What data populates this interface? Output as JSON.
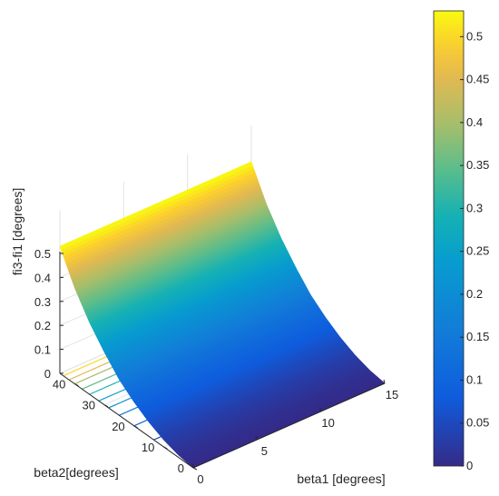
{
  "chart_data": {
    "type": "surface",
    "title": "",
    "xlabel": "beta1 [degrees]",
    "ylabel": "beta2[degrees]",
    "zlabel": "fi3-fi1 [degrees]",
    "xlim": [
      0,
      15
    ],
    "ylim": [
      0,
      45
    ],
    "zlim": [
      0,
      0.5
    ],
    "x_ticks": [
      "0",
      "5",
      "10",
      "15"
    ],
    "y_ticks": [
      "0",
      "10",
      "20",
      "30",
      "40"
    ],
    "z_ticks": [
      "0",
      "0.1",
      "0.2",
      "0.3",
      "0.4",
      "0.5"
    ],
    "surface_profile": {
      "beta2": [
        0,
        5,
        10,
        15,
        20,
        25,
        30,
        35,
        40,
        45
      ],
      "fi3_fi1": [
        0.0,
        0.01,
        0.03,
        0.06,
        0.1,
        0.15,
        0.22,
        0.3,
        0.4,
        0.53
      ]
    },
    "contours_on_floor": true,
    "grid": true,
    "colormap": "parula",
    "colorbar": {
      "min": 0,
      "max": 0.53,
      "ticks": [
        "0",
        "0.05",
        "0.1",
        "0.15",
        "0.2",
        "0.25",
        "0.3",
        "0.35",
        "0.4",
        "0.45",
        "0.5"
      ]
    }
  }
}
